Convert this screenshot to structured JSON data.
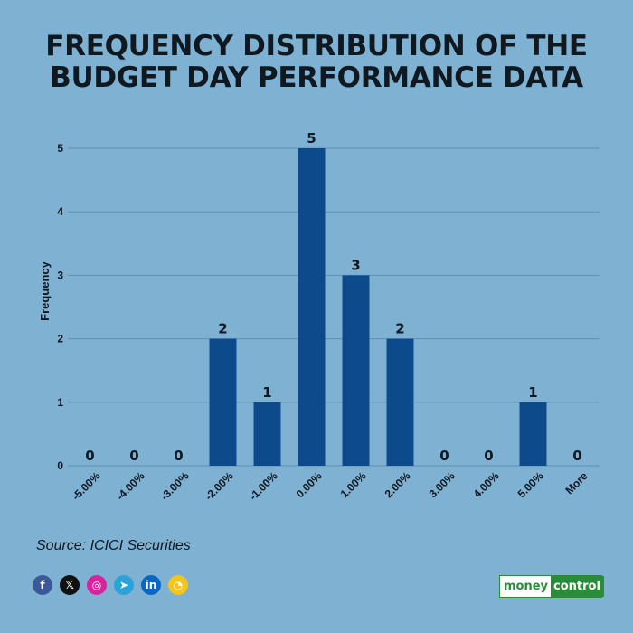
{
  "title_line1": "FREQUENCY DISTRIBUTION OF THE",
  "title_line2": "BUDGET DAY PERFORMANCE DATA",
  "source": "Source: ICICI Securities",
  "social_icons": [
    {
      "icon": "facebook-icon",
      "glyph": "f",
      "color": "#3b5998"
    },
    {
      "icon": "x-twitter-icon",
      "glyph": "𝕏",
      "color": "#111111"
    },
    {
      "icon": "instagram-icon",
      "glyph": "◎",
      "color": "#d6249f"
    },
    {
      "icon": "telegram-icon",
      "glyph": "➤",
      "color": "#2aa3d9"
    },
    {
      "icon": "linkedin-icon",
      "glyph": "in",
      "color": "#0a66c2"
    },
    {
      "icon": "koo-icon",
      "glyph": "◔",
      "color": "#f5c518"
    }
  ],
  "logo": {
    "part1": "money",
    "part2": "control"
  },
  "colors": {
    "bar": "#0d4a8c",
    "grid": "#5f8fb3",
    "text": "#101820",
    "background": "#7fb1d3"
  },
  "chart_data": {
    "type": "bar",
    "title": "FREQUENCY DISTRIBUTION OF THE BUDGET DAY PERFORMANCE DATA",
    "xlabel": "",
    "ylabel": "Frequency",
    "categories": [
      "-5.00%",
      "-4.00%",
      "-3.00%",
      "-2.00%",
      "-1.00%",
      "0.00%",
      "1.00%",
      "2.00%",
      "3.00%",
      "4.00%",
      "5.00%",
      "More"
    ],
    "values": [
      0,
      0,
      0,
      2,
      1,
      5,
      3,
      2,
      0,
      0,
      1,
      0
    ],
    "yticks": [
      0,
      1,
      2,
      3,
      4,
      5
    ],
    "ylim": [
      0,
      5
    ],
    "grid": true,
    "data_labels": true,
    "legend": false
  }
}
